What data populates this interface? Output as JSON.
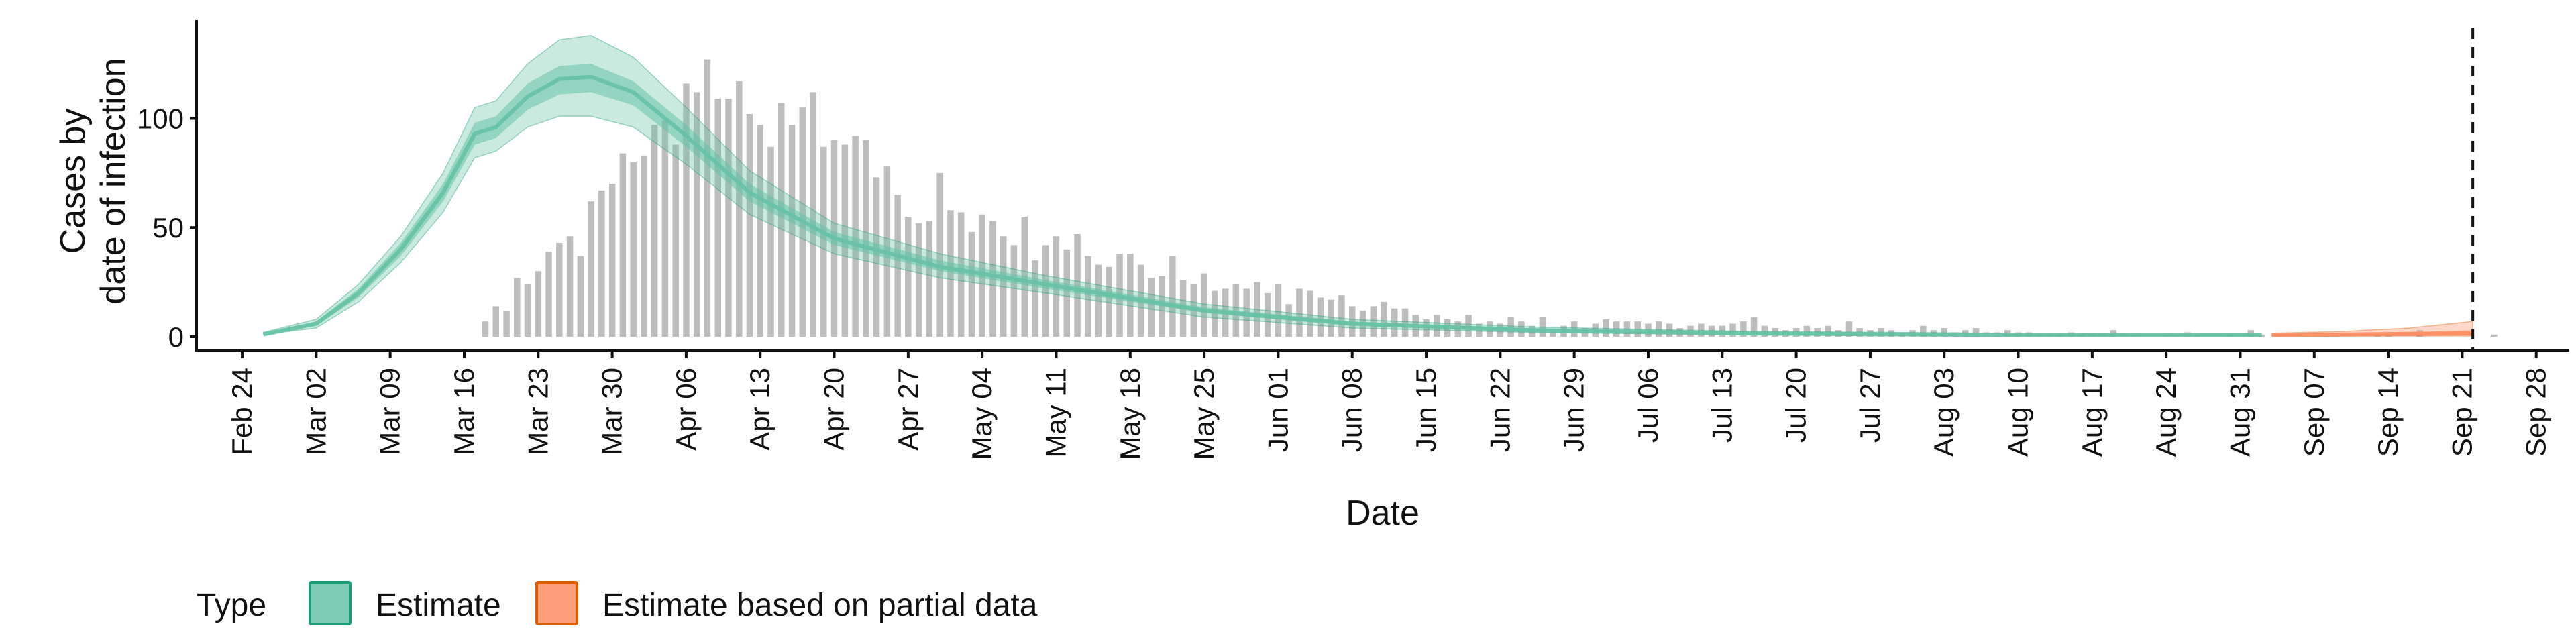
{
  "chart_data": {
    "type": "area",
    "xlabel": "Date",
    "ylabel_lines": [
      "Cases by",
      "date of infection"
    ],
    "ylim": [
      0,
      145
    ],
    "yticks": [
      0,
      50,
      100
    ],
    "x_start": "2020-02-20",
    "x_end": "2020-10-01",
    "xticks": [
      "Feb 24",
      "Mar 02",
      "Mar 09",
      "Mar 16",
      "Mar 23",
      "Mar 30",
      "Apr 06",
      "Apr 13",
      "Apr 20",
      "Apr 27",
      "May 04",
      "May 11",
      "May 18",
      "May 25",
      "Jun 01",
      "Jun 08",
      "Jun 15",
      "Jun 22",
      "Jun 29",
      "Jul 06",
      "Jul 13",
      "Jul 20",
      "Jul 27",
      "Aug 03",
      "Aug 10",
      "Aug 17",
      "Aug 24",
      "Aug 31",
      "Sep 07",
      "Sep 14",
      "Sep 21",
      "Sep 28"
    ],
    "xtick_dates": [
      "2020-02-24",
      "2020-03-02",
      "2020-03-09",
      "2020-03-16",
      "2020-03-23",
      "2020-03-30",
      "2020-04-06",
      "2020-04-13",
      "2020-04-20",
      "2020-04-27",
      "2020-05-04",
      "2020-05-11",
      "2020-05-18",
      "2020-05-25",
      "2020-06-01",
      "2020-06-08",
      "2020-06-15",
      "2020-06-22",
      "2020-06-29",
      "2020-07-06",
      "2020-07-13",
      "2020-07-20",
      "2020-07-27",
      "2020-08-03",
      "2020-08-10",
      "2020-08-17",
      "2020-08-24",
      "2020-08-31",
      "2020-09-07",
      "2020-09-14",
      "2020-09-21",
      "2020-09-28"
    ],
    "vline_date": "2020-09-22",
    "bars": {
      "start_date": "2020-03-18",
      "values": [
        7,
        14,
        12,
        27,
        24,
        30,
        39,
        43,
        46,
        37,
        62,
        67,
        70,
        84,
        80,
        83,
        97,
        99,
        88,
        116,
        112,
        127,
        109,
        109,
        117,
        102,
        97,
        87,
        107,
        97,
        105,
        112,
        87,
        90,
        88,
        92,
        90,
        73,
        78,
        65,
        55,
        52,
        53,
        75,
        58,
        57,
        48,
        56,
        53,
        46,
        42,
        55,
        35,
        42,
        46,
        40,
        47,
        37,
        33,
        32,
        38,
        38,
        33,
        27,
        28,
        37,
        26,
        24,
        29,
        21,
        22,
        24,
        22,
        25,
        20,
        24,
        15,
        22,
        21,
        18,
        17,
        19,
        14,
        12,
        14,
        16,
        13,
        13,
        10,
        8,
        10,
        8,
        7,
        10,
        6,
        7,
        6,
        9,
        7,
        5,
        9,
        3,
        5,
        7,
        4,
        6,
        8,
        7,
        7,
        7,
        6,
        7,
        6,
        4,
        5,
        6,
        5,
        5,
        6,
        7,
        9,
        5,
        4,
        3,
        4,
        5,
        4,
        5,
        3,
        7,
        4,
        3,
        4,
        3,
        2,
        3,
        5,
        3,
        4,
        2,
        3,
        4,
        2,
        2,
        3,
        2,
        2,
        1,
        1,
        1,
        2,
        1,
        1,
        1,
        3,
        1,
        1,
        0,
        0,
        1,
        1,
        2,
        1,
        0,
        0,
        1,
        0,
        3,
        1,
        0,
        0,
        0,
        0,
        0,
        1,
        1,
        0,
        0,
        0,
        1,
        1,
        0,
        0,
        3,
        0,
        0,
        0,
        0,
        0,
        0,
        1,
        0,
        0,
        0,
        0,
        0,
        0,
        0,
        0,
        0,
        0,
        0,
        0,
        0,
        0,
        0,
        0,
        0,
        0,
        0,
        0,
        0,
        0,
        0,
        0,
        0,
        0,
        0
      ]
    },
    "series": [
      {
        "name": "Estimate",
        "color": "#1b9e77",
        "fill": "#66c2a5",
        "points": [
          {
            "x": "2020-02-26",
            "median": 1,
            "lower_90": 1,
            "upper_90": 2,
            "lower_50": 1,
            "upper_50": 1.5
          },
          {
            "x": "2020-03-02",
            "median": 6,
            "lower_90": 4,
            "upper_90": 8,
            "lower_50": 5,
            "upper_50": 7
          },
          {
            "x": "2020-03-06",
            "median": 20,
            "lower_90": 16,
            "upper_90": 24,
            "lower_50": 18,
            "upper_50": 22
          },
          {
            "x": "2020-03-10",
            "median": 40,
            "lower_90": 34,
            "upper_90": 46,
            "lower_50": 37,
            "upper_50": 43
          },
          {
            "x": "2020-03-14",
            "median": 66,
            "lower_90": 57,
            "upper_90": 75,
            "lower_50": 62,
            "upper_50": 70
          },
          {
            "x": "2020-03-17",
            "median": 93,
            "lower_90": 82,
            "upper_90": 105,
            "lower_50": 88,
            "upper_50": 98
          },
          {
            "x": "2020-03-19",
            "median": 96,
            "lower_90": 85,
            "upper_90": 108,
            "lower_50": 91,
            "upper_50": 101
          },
          {
            "x": "2020-03-22",
            "median": 110,
            "lower_90": 96,
            "upper_90": 125,
            "lower_50": 104,
            "upper_50": 116
          },
          {
            "x": "2020-03-25",
            "median": 118,
            "lower_90": 101,
            "upper_90": 136,
            "lower_50": 111,
            "upper_50": 124
          },
          {
            "x": "2020-03-28",
            "median": 119,
            "lower_90": 101,
            "upper_90": 138,
            "lower_50": 112,
            "upper_50": 125
          },
          {
            "x": "2020-04-01",
            "median": 112,
            "lower_90": 96,
            "upper_90": 128,
            "lower_50": 106,
            "upper_50": 117
          },
          {
            "x": "2020-04-06",
            "median": 92,
            "lower_90": 79,
            "upper_90": 105,
            "lower_50": 87,
            "upper_50": 97
          },
          {
            "x": "2020-04-12",
            "median": 66,
            "lower_90": 56,
            "upper_90": 76,
            "lower_50": 62,
            "upper_50": 70
          },
          {
            "x": "2020-04-20",
            "median": 45,
            "lower_90": 38,
            "upper_90": 52,
            "lower_50": 42,
            "upper_50": 48
          },
          {
            "x": "2020-04-30",
            "median": 32,
            "lower_90": 27,
            "upper_90": 38,
            "lower_50": 30,
            "upper_50": 35
          },
          {
            "x": "2020-05-10",
            "median": 24,
            "lower_90": 20,
            "upper_90": 28,
            "lower_50": 22,
            "upper_50": 26
          },
          {
            "x": "2020-05-25",
            "median": 12,
            "lower_90": 9,
            "upper_90": 15,
            "lower_50": 11,
            "upper_50": 13.5
          },
          {
            "x": "2020-06-08",
            "median": 6,
            "lower_90": 4,
            "upper_90": 8,
            "lower_50": 5,
            "upper_50": 7
          },
          {
            "x": "2020-06-25",
            "median": 3,
            "lower_90": 2,
            "upper_90": 4.5,
            "lower_50": 2.5,
            "upper_50": 3.5
          },
          {
            "x": "2020-07-15",
            "median": 1.5,
            "lower_90": 0.8,
            "upper_90": 2.5,
            "lower_50": 1.1,
            "upper_50": 2
          },
          {
            "x": "2020-08-10",
            "median": 0.8,
            "lower_90": 0.3,
            "upper_90": 1.5,
            "lower_50": 0.5,
            "upper_50": 1.1
          },
          {
            "x": "2020-09-02",
            "median": 0.8,
            "lower_90": 0.3,
            "upper_90": 1.6,
            "lower_50": 0.5,
            "upper_50": 1.2
          }
        ]
      },
      {
        "name": "Estimate based on partial data",
        "color": "#d95f02",
        "fill": "#fc8d62",
        "points": [
          {
            "x": "2020-09-03",
            "median": 0.8,
            "lower_90": 0.3,
            "upper_90": 1.6,
            "lower_50": 0.5,
            "upper_50": 1.2
          },
          {
            "x": "2020-09-10",
            "median": 1,
            "lower_90": 0.3,
            "upper_90": 2.5,
            "lower_50": 0.6,
            "upper_50": 1.5
          },
          {
            "x": "2020-09-16",
            "median": 1.3,
            "lower_90": 0.3,
            "upper_90": 4,
            "lower_50": 0.7,
            "upper_50": 2
          },
          {
            "x": "2020-09-22",
            "median": 1.6,
            "lower_90": 0.3,
            "upper_90": 7,
            "lower_50": 0.8,
            "upper_50": 3
          }
        ]
      }
    ],
    "legend": {
      "title": "Type",
      "position": "bottom-left",
      "items": [
        {
          "label": "Estimate",
          "fill": "#66c2a5",
          "border": "#1b9e77"
        },
        {
          "label": "Estimate based on partial data",
          "fill": "#fc8d62",
          "border": "#d95f02"
        }
      ]
    }
  }
}
